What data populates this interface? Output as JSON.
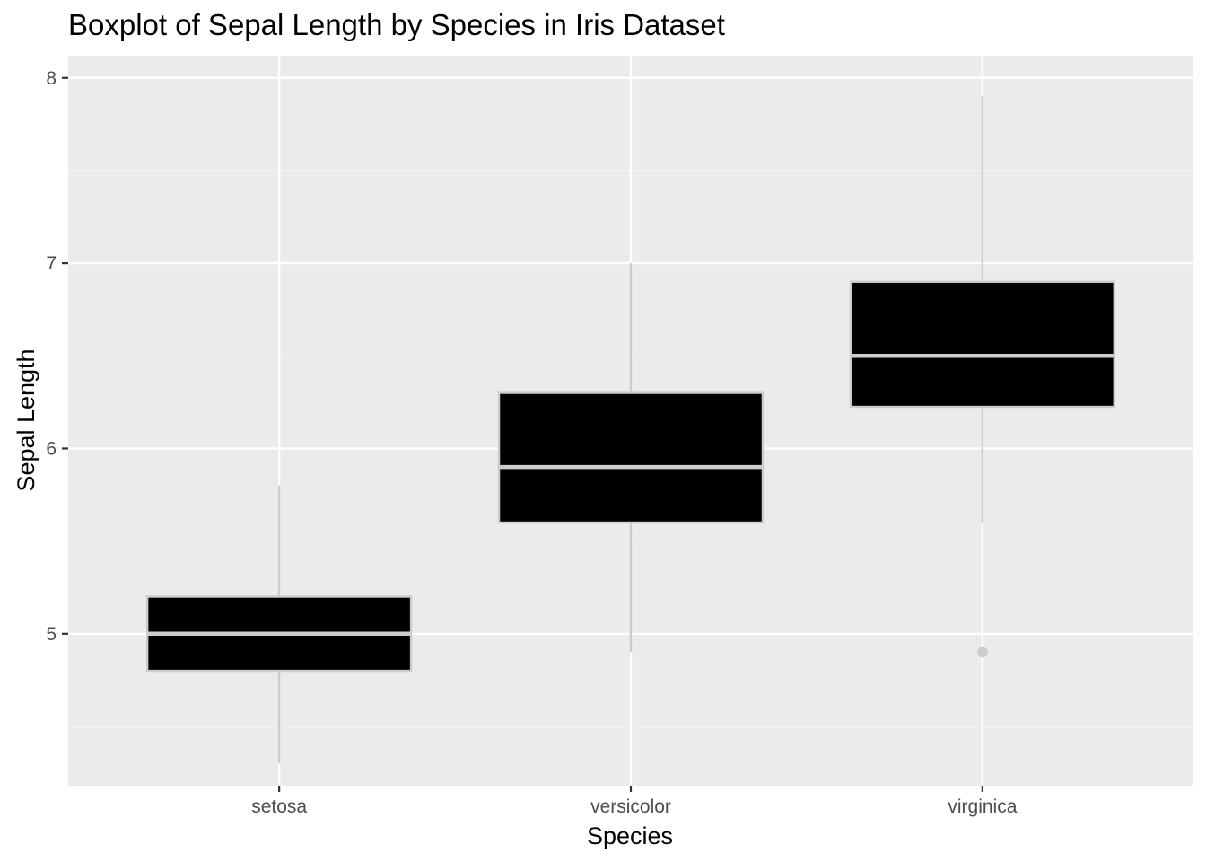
{
  "chart_data": {
    "type": "boxplot",
    "title": "Boxplot of Sepal Length by Species in Iris Dataset",
    "xlabel": "Species",
    "ylabel": "Sepal Length",
    "categories": [
      "setosa",
      "versicolor",
      "virginica"
    ],
    "ylim": [
      4.18,
      8.12
    ],
    "y_ticks": [
      5,
      6,
      7,
      8
    ],
    "y_tick_labels": [
      "5",
      "6",
      "7",
      "8"
    ],
    "grid": true,
    "legend": "none",
    "boxes": [
      {
        "category": "setosa",
        "whisker_low": 4.3,
        "q1": 4.8,
        "median": 5.0,
        "q3": 5.2,
        "whisker_high": 5.8,
        "outliers": []
      },
      {
        "category": "versicolor",
        "whisker_low": 4.9,
        "q1": 5.6,
        "median": 5.9,
        "q3": 6.3,
        "whisker_high": 7.0,
        "outliers": []
      },
      {
        "category": "virginica",
        "whisker_low": 5.6,
        "q1": 6.225,
        "median": 6.5,
        "q3": 6.9,
        "whisker_high": 7.9,
        "outliers": [
          4.9
        ]
      }
    ],
    "colors": {
      "panel_bg": "#ebebeb",
      "grid_major": "#ffffff",
      "grid_minor": "#f5f5f5",
      "box_fill": "#000000",
      "box_outline": "#cccccc",
      "tick_text": "#4d4d4d",
      "tick_mark": "#333333"
    }
  }
}
